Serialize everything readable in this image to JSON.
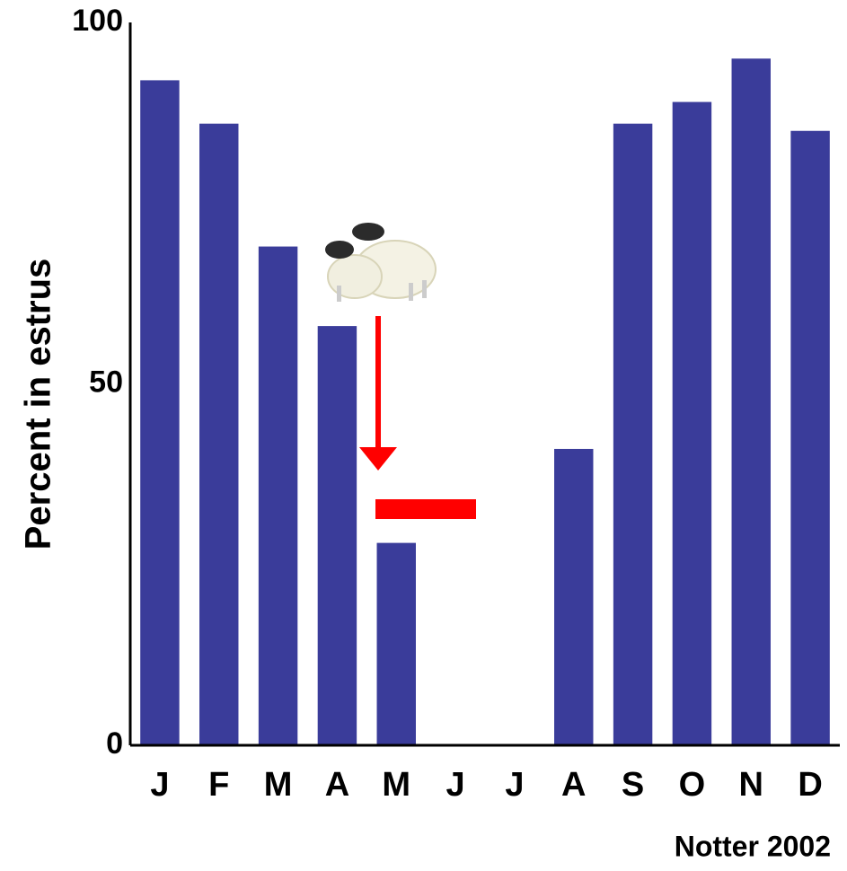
{
  "chart_data": {
    "type": "bar",
    "y_label": "Percent in estrus",
    "source": "Notter 2002",
    "categories": [
      "J",
      "F",
      "M",
      "A",
      "M",
      "J",
      "J",
      "A",
      "S",
      "O",
      "N",
      "D"
    ],
    "values": [
      92,
      86,
      69,
      58,
      28,
      0,
      0,
      41,
      86,
      89,
      95,
      85
    ],
    "color": "#3a3c9a",
    "ylim": [
      0,
      100
    ],
    "yticks": [
      0,
      50,
      100
    ],
    "grid": false
  }
}
